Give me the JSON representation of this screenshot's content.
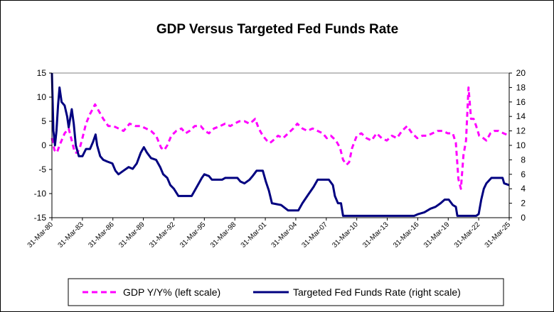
{
  "chart_data": {
    "type": "line",
    "title": "GDP Versus Targeted Fed Funds Rate",
    "xlabel": "",
    "ylabel": "",
    "y_left": {
      "min": -15,
      "max": 15,
      "ticks": [
        15,
        10,
        5,
        0,
        -5,
        -10,
        -15
      ]
    },
    "y_right": {
      "min": 0,
      "max": 20,
      "ticks": [
        20,
        18,
        16,
        14,
        12,
        10,
        8,
        6,
        4,
        2,
        0
      ]
    },
    "x_range": [
      1980.25,
      2025.25
    ],
    "x_ticks": [
      {
        "label": "31-Mar-80",
        "x": 1980.25
      },
      {
        "label": "31-Mar-83",
        "x": 1983.25
      },
      {
        "label": "31-Mar-86",
        "x": 1986.25
      },
      {
        "label": "31-Mar-89",
        "x": 1989.25
      },
      {
        "label": "31-Mar-92",
        "x": 1992.25
      },
      {
        "label": "31-Mar-95",
        "x": 1995.25
      },
      {
        "label": "31-Mar-98",
        "x": 1998.25
      },
      {
        "label": "31-Mar-01",
        "x": 2001.25
      },
      {
        "label": "31-Mar-04",
        "x": 2004.25
      },
      {
        "label": "31-Mar-07",
        "x": 2007.25
      },
      {
        "label": "31-Mar-10",
        "x": 2010.25
      },
      {
        "label": "31-Mar-13",
        "x": 2013.25
      },
      {
        "label": "31-Mar-16",
        "x": 2016.25
      },
      {
        "label": "31-Mar-19",
        "x": 2019.25
      },
      {
        "label": "31-Mar-22",
        "x": 2022.25
      },
      {
        "label": "31-Mar-25",
        "x": 2025.25
      }
    ],
    "series": [
      {
        "name": "GDP Y/Y% (left scale)",
        "axis": "left",
        "color": "#ff00ff",
        "style": "dashed",
        "points": [
          [
            1980.25,
            1.5
          ],
          [
            1980.5,
            -1.0
          ],
          [
            1980.75,
            -1.5
          ],
          [
            1981.0,
            0.0
          ],
          [
            1981.5,
            2.5
          ],
          [
            1981.9,
            3.5
          ],
          [
            1982.2,
            1.0
          ],
          [
            1982.5,
            -1.5
          ],
          [
            1982.75,
            -1.5
          ],
          [
            1983.0,
            -0.5
          ],
          [
            1983.25,
            1.5
          ],
          [
            1983.6,
            4.5
          ],
          [
            1984.0,
            6.5
          ],
          [
            1984.5,
            8.5
          ],
          [
            1984.9,
            7.0
          ],
          [
            1985.3,
            5.5
          ],
          [
            1985.8,
            4.0
          ],
          [
            1986.3,
            4.0
          ],
          [
            1986.8,
            3.5
          ],
          [
            1987.3,
            3.0
          ],
          [
            1987.9,
            4.5
          ],
          [
            1988.5,
            4.0
          ],
          [
            1989.0,
            4.0
          ],
          [
            1989.5,
            3.5
          ],
          [
            1990.0,
            3.0
          ],
          [
            1990.5,
            2.0
          ],
          [
            1991.0,
            -0.5
          ],
          [
            1991.3,
            -1.0
          ],
          [
            1991.6,
            0.0
          ],
          [
            1992.0,
            2.0
          ],
          [
            1992.5,
            3.0
          ],
          [
            1993.0,
            3.5
          ],
          [
            1993.4,
            2.5
          ],
          [
            1993.8,
            3.0
          ],
          [
            1994.3,
            4.0
          ],
          [
            1994.9,
            4.0
          ],
          [
            1995.3,
            3.0
          ],
          [
            1995.7,
            2.5
          ],
          [
            1996.2,
            3.5
          ],
          [
            1996.8,
            4.0
          ],
          [
            1997.3,
            4.5
          ],
          [
            1997.8,
            4.0
          ],
          [
            1998.2,
            4.5
          ],
          [
            1998.7,
            5.0
          ],
          [
            1999.2,
            5.0
          ],
          [
            1999.7,
            4.5
          ],
          [
            2000.0,
            5.0
          ],
          [
            2000.25,
            5.5
          ],
          [
            2000.6,
            3.5
          ],
          [
            2001.0,
            2.0
          ],
          [
            2001.4,
            1.0
          ],
          [
            2001.7,
            0.5
          ],
          [
            2002.0,
            1.0
          ],
          [
            2002.5,
            2.0
          ],
          [
            2003.0,
            1.5
          ],
          [
            2003.5,
            2.5
          ],
          [
            2004.0,
            3.5
          ],
          [
            2004.4,
            4.5
          ],
          [
            2004.9,
            3.5
          ],
          [
            2005.4,
            3.0
          ],
          [
            2005.9,
            3.5
          ],
          [
            2006.4,
            3.0
          ],
          [
            2006.9,
            2.5
          ],
          [
            2007.3,
            1.5
          ],
          [
            2007.7,
            2.0
          ],
          [
            2008.2,
            1.0
          ],
          [
            2008.6,
            -0.5
          ],
          [
            2008.9,
            -3.0
          ],
          [
            2009.25,
            -4.0
          ],
          [
            2009.5,
            -3.5
          ],
          [
            2009.8,
            -0.5
          ],
          [
            2010.25,
            2.0
          ],
          [
            2010.7,
            2.5
          ],
          [
            2011.2,
            1.5
          ],
          [
            2011.7,
            1.0
          ],
          [
            2012.2,
            2.5
          ],
          [
            2012.7,
            1.5
          ],
          [
            2013.2,
            1.0
          ],
          [
            2013.7,
            2.0
          ],
          [
            2014.2,
            1.5
          ],
          [
            2014.7,
            3.0
          ],
          [
            2015.2,
            4.0
          ],
          [
            2015.7,
            2.5
          ],
          [
            2016.2,
            1.5
          ],
          [
            2016.7,
            2.0
          ],
          [
            2017.2,
            2.0
          ],
          [
            2017.7,
            2.5
          ],
          [
            2018.2,
            3.0
          ],
          [
            2018.7,
            3.0
          ],
          [
            2019.2,
            2.5
          ],
          [
            2019.7,
            2.5
          ],
          [
            2020.0,
            0.5
          ],
          [
            2020.25,
            -7.0
          ],
          [
            2020.5,
            -9.0
          ],
          [
            2020.75,
            -2.0
          ],
          [
            2021.0,
            1.0
          ],
          [
            2021.25,
            12.0
          ],
          [
            2021.5,
            5.5
          ],
          [
            2021.75,
            5.5
          ],
          [
            2022.0,
            4.0
          ],
          [
            2022.3,
            2.0
          ],
          [
            2022.7,
            1.5
          ],
          [
            2023.0,
            1.0
          ],
          [
            2023.4,
            2.5
          ],
          [
            2023.8,
            3.0
          ],
          [
            2024.2,
            3.0
          ],
          [
            2024.7,
            2.5
          ],
          [
            2025.25,
            2.0
          ]
        ]
      },
      {
        "name": "Targeted Fed Funds Rate (right scale)",
        "axis": "right",
        "color": "#000080",
        "style": "solid",
        "points": [
          [
            1980.25,
            20.0
          ],
          [
            1980.4,
            12.0
          ],
          [
            1980.55,
            10.0
          ],
          [
            1980.7,
            12.0
          ],
          [
            1980.85,
            15.5
          ],
          [
            1981.0,
            18.0
          ],
          [
            1981.2,
            16.0
          ],
          [
            1981.5,
            15.5
          ],
          [
            1981.75,
            14.0
          ],
          [
            1981.9,
            12.5
          ],
          [
            1982.2,
            15.0
          ],
          [
            1982.4,
            13.0
          ],
          [
            1982.6,
            10.0
          ],
          [
            1982.9,
            8.5
          ],
          [
            1983.25,
            8.5
          ],
          [
            1983.6,
            9.5
          ],
          [
            1984.0,
            9.5
          ],
          [
            1984.3,
            10.5
          ],
          [
            1984.55,
            11.5
          ],
          [
            1984.7,
            10.0
          ],
          [
            1985.0,
            8.5
          ],
          [
            1985.3,
            8.0
          ],
          [
            1985.7,
            7.75
          ],
          [
            1986.2,
            7.5
          ],
          [
            1986.5,
            6.5
          ],
          [
            1986.8,
            6.0
          ],
          [
            1987.3,
            6.5
          ],
          [
            1987.8,
            7.0
          ],
          [
            1988.2,
            6.75
          ],
          [
            1988.6,
            7.5
          ],
          [
            1989.0,
            9.0
          ],
          [
            1989.3,
            9.75
          ],
          [
            1989.6,
            9.0
          ],
          [
            1990.0,
            8.25
          ],
          [
            1990.5,
            8.0
          ],
          [
            1990.9,
            7.0
          ],
          [
            1991.2,
            6.0
          ],
          [
            1991.6,
            5.5
          ],
          [
            1991.9,
            4.5
          ],
          [
            1992.25,
            4.0
          ],
          [
            1992.7,
            3.0
          ],
          [
            1993.5,
            3.0
          ],
          [
            1994.0,
            3.0
          ],
          [
            1994.3,
            3.75
          ],
          [
            1994.7,
            4.75
          ],
          [
            1995.0,
            5.5
          ],
          [
            1995.25,
            6.0
          ],
          [
            1995.7,
            5.75
          ],
          [
            1996.0,
            5.25
          ],
          [
            1997.0,
            5.25
          ],
          [
            1997.3,
            5.5
          ],
          [
            1998.5,
            5.5
          ],
          [
            1998.8,
            5.0
          ],
          [
            1999.2,
            4.75
          ],
          [
            1999.7,
            5.25
          ],
          [
            2000.0,
            5.75
          ],
          [
            2000.4,
            6.5
          ],
          [
            2001.0,
            6.5
          ],
          [
            2001.3,
            5.0
          ],
          [
            2001.6,
            3.75
          ],
          [
            2001.9,
            2.0
          ],
          [
            2002.8,
            1.75
          ],
          [
            2003.5,
            1.0
          ],
          [
            2004.5,
            1.0
          ],
          [
            2004.9,
            2.0
          ],
          [
            2005.5,
            3.25
          ],
          [
            2006.0,
            4.25
          ],
          [
            2006.4,
            5.25
          ],
          [
            2007.5,
            5.25
          ],
          [
            2007.9,
            4.5
          ],
          [
            2008.1,
            3.0
          ],
          [
            2008.4,
            2.0
          ],
          [
            2008.7,
            2.0
          ],
          [
            2008.9,
            0.25
          ],
          [
            2015.9,
            0.25
          ],
          [
            2016.3,
            0.5
          ],
          [
            2016.9,
            0.75
          ],
          [
            2017.5,
            1.25
          ],
          [
            2018.0,
            1.5
          ],
          [
            2018.5,
            2.0
          ],
          [
            2018.9,
            2.5
          ],
          [
            2019.3,
            2.5
          ],
          [
            2019.7,
            1.75
          ],
          [
            2020.0,
            1.5
          ],
          [
            2020.15,
            0.25
          ],
          [
            2022.0,
            0.25
          ],
          [
            2022.25,
            0.5
          ],
          [
            2022.5,
            2.5
          ],
          [
            2022.75,
            4.0
          ],
          [
            2023.0,
            4.75
          ],
          [
            2023.5,
            5.5
          ],
          [
            2024.6,
            5.5
          ],
          [
            2024.75,
            4.75
          ],
          [
            2025.25,
            4.5
          ]
        ]
      }
    ]
  }
}
